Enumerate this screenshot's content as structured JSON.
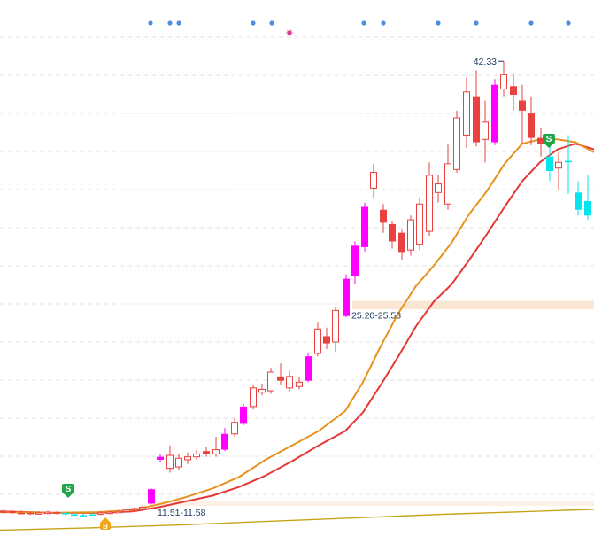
{
  "colors": {
    "up": "#e8413f",
    "down": "#e8413f",
    "strong_up": "#ff00ff",
    "cyan": "#00e5ee",
    "ma_fast": "#e8921e",
    "ma_slow": "#e53935",
    "ma_long": "#c8a418",
    "grid": "#e3e3e3",
    "dot": "#4a8fe0",
    "star": "#e0308f",
    "band": "#fbe3cf",
    "sell_badge": "#1fa64a",
    "buy_badge": "#f2a516",
    "label": "#1f3b66"
  },
  "chart_data": {
    "type": "candlestick",
    "grid": true,
    "ylim": [
      9.6,
      46.6
    ],
    "labels": {
      "peak": "42.33",
      "band_upper": "25.20-25.53",
      "band_lower": "11.51-11.58"
    },
    "signals": {
      "sell_marker": "S",
      "buy_marker": "B"
    },
    "dot_markers_x": [
      170,
      192,
      202,
      286,
      307,
      411,
      433,
      495,
      538,
      600,
      642
    ],
    "star_marker_x": 327,
    "sell_signal_x": [
      77,
      620
    ],
    "buy_signal_x": [
      119
    ],
    "support_bands": [
      [
        25.2,
        25.53
      ],
      [
        11.51,
        11.58
      ]
    ],
    "candles": [
      {
        "x": 4,
        "o": 11.0,
        "c": 11.0,
        "h": 11.2,
        "l": 10.9,
        "s": "down"
      },
      {
        "x": 14,
        "o": 11.0,
        "c": 10.9,
        "h": 11.1,
        "l": 10.8,
        "s": "down"
      },
      {
        "x": 24,
        "o": 10.9,
        "c": 10.9,
        "h": 11.05,
        "l": 10.8,
        "s": "down"
      },
      {
        "x": 34,
        "o": 10.9,
        "c": 10.85,
        "h": 11.0,
        "l": 10.75,
        "s": "down"
      },
      {
        "x": 44,
        "o": 10.85,
        "c": 10.9,
        "h": 11.0,
        "l": 10.8,
        "s": "up"
      },
      {
        "x": 54,
        "o": 10.9,
        "c": 10.95,
        "h": 11.05,
        "l": 10.8,
        "s": "up"
      },
      {
        "x": 64,
        "o": 10.95,
        "c": 10.9,
        "h": 11.0,
        "l": 10.8,
        "s": "down"
      },
      {
        "x": 74,
        "o": 10.9,
        "c": 10.8,
        "h": 10.95,
        "l": 10.7,
        "s": "cyan"
      },
      {
        "x": 84,
        "o": 10.8,
        "c": 10.75,
        "h": 10.9,
        "l": 10.7,
        "s": "cyan"
      },
      {
        "x": 94,
        "o": 10.75,
        "c": 10.75,
        "h": 10.85,
        "l": 10.65,
        "s": "cyan"
      },
      {
        "x": 104,
        "o": 10.75,
        "c": 10.8,
        "h": 10.9,
        "l": 10.7,
        "s": "cyan"
      },
      {
        "x": 114,
        "o": 10.8,
        "c": 10.9,
        "h": 11.0,
        "l": 10.75,
        "s": "up"
      },
      {
        "x": 124,
        "o": 10.9,
        "c": 10.95,
        "h": 11.05,
        "l": 10.8,
        "s": "up"
      },
      {
        "x": 134,
        "o": 10.95,
        "c": 11.0,
        "h": 11.1,
        "l": 10.9,
        "s": "up"
      },
      {
        "x": 143,
        "o": 11.0,
        "c": 11.1,
        "h": 11.2,
        "l": 10.95,
        "s": "up"
      },
      {
        "x": 152,
        "o": 11.1,
        "c": 11.2,
        "h": 11.3,
        "l": 11.05,
        "s": "up"
      },
      {
        "x": 161,
        "o": 11.2,
        "c": 11.3,
        "h": 11.4,
        "l": 11.15,
        "s": "up"
      },
      {
        "x": 171,
        "o": 11.55,
        "c": 12.55,
        "h": 12.6,
        "l": 11.5,
        "s": "strong"
      },
      {
        "x": 181,
        "o": 14.6,
        "c": 14.8,
        "h": 15.0,
        "l": 14.4,
        "s": "strong"
      },
      {
        "x": 192,
        "o": 14.0,
        "c": 14.9,
        "h": 15.6,
        "l": 13.7,
        "s": "up"
      },
      {
        "x": 202,
        "o": 14.1,
        "c": 14.7,
        "h": 15.0,
        "l": 13.9,
        "s": "up"
      },
      {
        "x": 212,
        "o": 14.6,
        "c": 14.8,
        "h": 15.1,
        "l": 14.3,
        "s": "up"
      },
      {
        "x": 222,
        "o": 14.8,
        "c": 15.0,
        "h": 15.3,
        "l": 14.6,
        "s": "up"
      },
      {
        "x": 233,
        "o": 15.0,
        "c": 15.2,
        "h": 15.5,
        "l": 14.8,
        "s": "down"
      },
      {
        "x": 244,
        "o": 15.0,
        "c": 15.3,
        "h": 16.2,
        "l": 14.8,
        "s": "up"
      },
      {
        "x": 254,
        "o": 15.3,
        "c": 16.4,
        "h": 16.8,
        "l": 15.2,
        "s": "strong"
      },
      {
        "x": 265,
        "o": 16.4,
        "c": 17.2,
        "h": 17.5,
        "l": 16.2,
        "s": "up"
      },
      {
        "x": 275,
        "o": 17.1,
        "c": 18.3,
        "h": 18.5,
        "l": 17.0,
        "s": "strong"
      },
      {
        "x": 286,
        "o": 18.3,
        "c": 19.6,
        "h": 19.8,
        "l": 18.1,
        "s": "up"
      },
      {
        "x": 296,
        "o": 19.5,
        "c": 19.3,
        "h": 19.9,
        "l": 19.1,
        "s": "up"
      },
      {
        "x": 306,
        "o": 19.4,
        "c": 20.7,
        "h": 21.0,
        "l": 19.2,
        "s": "up"
      },
      {
        "x": 317,
        "o": 20.4,
        "c": 20.1,
        "h": 21.3,
        "l": 19.8,
        "s": "down"
      },
      {
        "x": 327,
        "o": 20.4,
        "c": 19.6,
        "h": 20.8,
        "l": 19.3,
        "s": "up"
      },
      {
        "x": 338,
        "o": 19.7,
        "c": 20.0,
        "h": 20.4,
        "l": 19.5,
        "s": "up"
      },
      {
        "x": 348,
        "o": 20.1,
        "c": 21.8,
        "h": 22.0,
        "l": 20.0,
        "s": "strong"
      },
      {
        "x": 359,
        "o": 22.0,
        "c": 23.7,
        "h": 24.2,
        "l": 21.8,
        "s": "up"
      },
      {
        "x": 369,
        "o": 23.2,
        "c": 22.7,
        "h": 23.8,
        "l": 22.3,
        "s": "down"
      },
      {
        "x": 379,
        "o": 22.8,
        "c": 25.0,
        "h": 25.2,
        "l": 22.1,
        "s": "up"
      },
      {
        "x": 391,
        "o": 24.6,
        "c": 27.2,
        "h": 27.5,
        "l": 24.5,
        "s": "strong"
      },
      {
        "x": 401,
        "o": 27.4,
        "c": 29.5,
        "h": 29.8,
        "l": 26.8,
        "s": "strong"
      },
      {
        "x": 412,
        "o": 29.4,
        "c": 32.2,
        "h": 32.5,
        "l": 29.1,
        "s": "strong"
      },
      {
        "x": 422,
        "o": 33.5,
        "c": 34.6,
        "h": 35.2,
        "l": 32.8,
        "s": "up"
      },
      {
        "x": 433,
        "o": 32.0,
        "c": 31.1,
        "h": 32.4,
        "l": 30.4,
        "s": "down"
      },
      {
        "x": 443,
        "o": 31.0,
        "c": 29.8,
        "h": 31.2,
        "l": 29.3,
        "s": "down"
      },
      {
        "x": 454,
        "o": 30.4,
        "c": 29.0,
        "h": 30.6,
        "l": 28.5,
        "s": "down"
      },
      {
        "x": 464,
        "o": 29.2,
        "c": 31.3,
        "h": 31.6,
        "l": 28.8,
        "s": "up"
      },
      {
        "x": 474,
        "o": 29.6,
        "c": 32.4,
        "h": 32.8,
        "l": 29.2,
        "s": "up"
      },
      {
        "x": 485,
        "o": 30.5,
        "c": 34.4,
        "h": 35.3,
        "l": 30.2,
        "s": "up"
      },
      {
        "x": 495,
        "o": 33.2,
        "c": 33.8,
        "h": 34.4,
        "l": 32.5,
        "s": "up"
      },
      {
        "x": 506,
        "o": 32.4,
        "c": 35.2,
        "h": 36.6,
        "l": 32.0,
        "s": "up"
      },
      {
        "x": 516,
        "o": 34.8,
        "c": 38.4,
        "h": 38.9,
        "l": 34.6,
        "s": "up"
      },
      {
        "x": 527,
        "o": 37.2,
        "c": 40.2,
        "h": 41.2,
        "l": 36.3,
        "s": "up"
      },
      {
        "x": 538,
        "o": 39.9,
        "c": 36.7,
        "h": 41.7,
        "l": 36.4,
        "s": "down"
      },
      {
        "x": 548,
        "o": 36.9,
        "c": 38.1,
        "h": 39.6,
        "l": 35.3,
        "s": "up"
      },
      {
        "x": 559,
        "o": 36.7,
        "c": 40.7,
        "h": 41.1,
        "l": 36.5,
        "s": "strong"
      },
      {
        "x": 569,
        "o": 40.4,
        "c": 41.4,
        "h": 42.33,
        "l": 39.9,
        "s": "up"
      },
      {
        "x": 580,
        "o": 40.6,
        "c": 40.0,
        "h": 41.5,
        "l": 38.9,
        "s": "down"
      },
      {
        "x": 590,
        "o": 39.6,
        "c": 38.9,
        "h": 40.7,
        "l": 36.6,
        "s": "down"
      },
      {
        "x": 600,
        "o": 38.7,
        "c": 37.0,
        "h": 39.9,
        "l": 36.5,
        "s": "down"
      },
      {
        "x": 611,
        "o": 37.0,
        "c": 36.6,
        "h": 37.7,
        "l": 35.7,
        "s": "down"
      },
      {
        "x": 621,
        "o": 35.7,
        "c": 34.7,
        "h": 36.5,
        "l": 34.0,
        "s": "cyan"
      },
      {
        "x": 631,
        "o": 34.9,
        "c": 35.3,
        "h": 36.0,
        "l": 33.4,
        "s": "up"
      },
      {
        "x": 642,
        "o": 35.4,
        "c": 35.3,
        "h": 37.2,
        "l": 33.1,
        "s": "cyan"
      },
      {
        "x": 653,
        "o": 33.2,
        "c": 32.0,
        "h": 34.0,
        "l": 31.6,
        "s": "cyan"
      },
      {
        "x": 664,
        "o": 32.6,
        "c": 31.6,
        "h": 34.4,
        "l": 31.3,
        "s": "cyan"
      }
    ],
    "ma_fast": [
      [
        0,
        10.95
      ],
      [
        60,
        10.9
      ],
      [
        110,
        10.95
      ],
      [
        150,
        11.1
      ],
      [
        180,
        11.5
      ],
      [
        210,
        12.0
      ],
      [
        240,
        12.6
      ],
      [
        270,
        13.4
      ],
      [
        300,
        14.6
      ],
      [
        330,
        15.6
      ],
      [
        360,
        16.6
      ],
      [
        390,
        18.0
      ],
      [
        410,
        20.0
      ],
      [
        430,
        22.5
      ],
      [
        450,
        24.8
      ],
      [
        470,
        26.7
      ],
      [
        490,
        28.1
      ],
      [
        510,
        29.7
      ],
      [
        530,
        31.7
      ],
      [
        550,
        33.3
      ],
      [
        570,
        35.2
      ],
      [
        590,
        36.6
      ],
      [
        610,
        36.9
      ],
      [
        630,
        36.9
      ],
      [
        650,
        36.7
      ],
      [
        671,
        36.0
      ]
    ],
    "ma_slow": [
      [
        0,
        11.0
      ],
      [
        60,
        10.9
      ],
      [
        110,
        10.9
      ],
      [
        150,
        11.0
      ],
      [
        180,
        11.3
      ],
      [
        210,
        11.7
      ],
      [
        240,
        12.1
      ],
      [
        270,
        12.7
      ],
      [
        300,
        13.5
      ],
      [
        330,
        14.5
      ],
      [
        360,
        15.6
      ],
      [
        390,
        16.6
      ],
      [
        410,
        17.9
      ],
      [
        430,
        19.8
      ],
      [
        450,
        21.8
      ],
      [
        470,
        23.9
      ],
      [
        490,
        25.6
      ],
      [
        510,
        26.8
      ],
      [
        530,
        28.5
      ],
      [
        550,
        30.3
      ],
      [
        570,
        32.2
      ],
      [
        590,
        34.0
      ],
      [
        610,
        35.3
      ],
      [
        630,
        36.2
      ],
      [
        650,
        36.6
      ],
      [
        671,
        36.2
      ]
    ],
    "ma_long": [
      [
        0,
        9.7
      ],
      [
        100,
        9.85
      ],
      [
        200,
        10.05
      ],
      [
        300,
        10.3
      ],
      [
        400,
        10.55
      ],
      [
        500,
        10.8
      ],
      [
        600,
        11.0
      ],
      [
        671,
        11.15
      ]
    ]
  }
}
